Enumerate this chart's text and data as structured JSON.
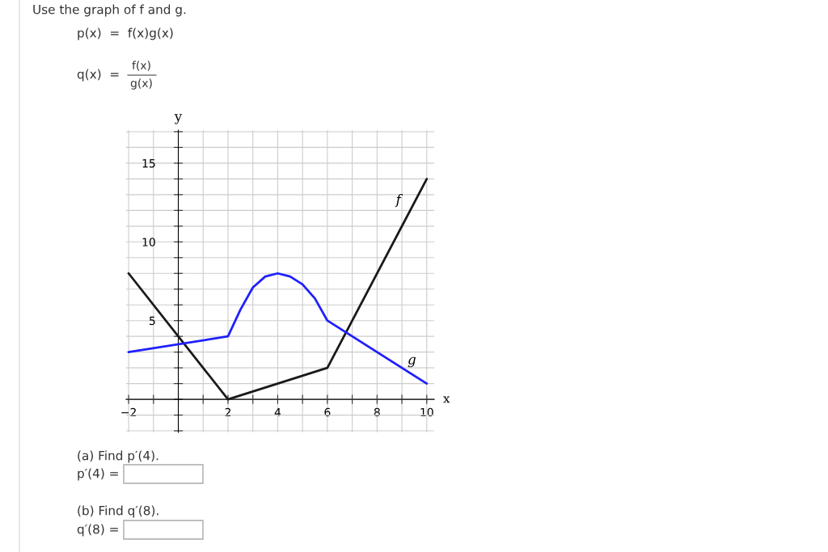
{
  "chart_data": {
    "type": "line",
    "title": "Use the graph of f and g.",
    "xlabel": "x",
    "ylabel": "y",
    "xlim": [
      -2.1,
      10.3
    ],
    "ylim": [
      -2.1,
      17.1
    ],
    "xticks": [
      {
        "value": -2,
        "label": "−2"
      },
      {
        "value": -1,
        "label": null
      },
      {
        "value": 0,
        "label": null
      },
      {
        "value": 1,
        "label": null
      },
      2,
      {
        "value": 3,
        "label": null
      },
      4,
      {
        "value": 5,
        "label": null
      },
      6,
      {
        "value": 7,
        "label": null
      },
      8,
      {
        "value": 9,
        "label": null
      },
      10
    ],
    "yticks": [
      {
        "value": -2,
        "label": null
      },
      {
        "value": -1,
        "label": null
      },
      {
        "value": 0,
        "label": null
      },
      {
        "value": 1,
        "label": null
      },
      {
        "value": 2,
        "label": null
      },
      {
        "value": 3,
        "label": null
      },
      {
        "value": 4,
        "label": null
      },
      5,
      {
        "value": 6,
        "label": null
      },
      {
        "value": 7,
        "label": null
      },
      {
        "value": 8,
        "label": null
      },
      {
        "value": 9,
        "label": null
      },
      10,
      {
        "value": 11,
        "label": null
      },
      {
        "value": 12,
        "label": null
      },
      {
        "value": 13,
        "label": null
      },
      {
        "value": 14,
        "label": null
      },
      15,
      {
        "value": 16,
        "label": null
      },
      {
        "value": 17,
        "label": null
      }
    ],
    "grid": true,
    "series": [
      {
        "name": "f",
        "color": "#1a1a1a",
        "x": [
          -2,
          2,
          6,
          10
        ],
        "values": [
          8,
          0,
          2,
          14
        ]
      },
      {
        "name": "g",
        "color": "#1f1fff",
        "x": [
          -2,
          2,
          2.5,
          3,
          3.5,
          4,
          4.5,
          5,
          5.5,
          6,
          10
        ],
        "values": [
          3,
          4,
          5.7,
          7.1,
          7.8,
          8,
          7.8,
          7.3,
          6.4,
          5,
          1
        ]
      }
    ],
    "annotations": [
      "p(x)  =  f(x)g(x)",
      "q(x)  =",
      "f(x)",
      "g(x)",
      "(a) Find p′(4).",
      "p′(4) =",
      "(b) Find q′(8).",
      "q′(8) ="
    ]
  }
}
